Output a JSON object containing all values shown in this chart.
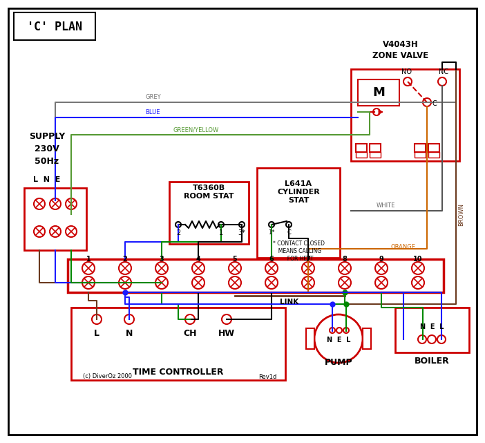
{
  "title": "'C' PLAN",
  "bg_color": "#ffffff",
  "red": "#cc0000",
  "blue": "#1a1aff",
  "green": "#008800",
  "brown": "#6b3a1f",
  "grey": "#777777",
  "orange": "#cc6600",
  "black": "#000000",
  "gy": "#559933",
  "white_w": "#aaaaaa",
  "zone_valve_title": "V4043H\nZONE VALVE",
  "room_stat_title": "T6360B\nROOM STAT",
  "cyl_stat_title": "L641A\nCYLINDER\nSTAT",
  "time_ctrl_label": "TIME CONTROLLER",
  "pump_label": "PUMP",
  "boiler_label": "BOILER",
  "link_label": "LINK",
  "footnote": "(c) DiverOz 2000",
  "rev": "Rev1d",
  "supply_label": "SUPPLY\n230V\n50Hz",
  "lne": "L  N  E"
}
